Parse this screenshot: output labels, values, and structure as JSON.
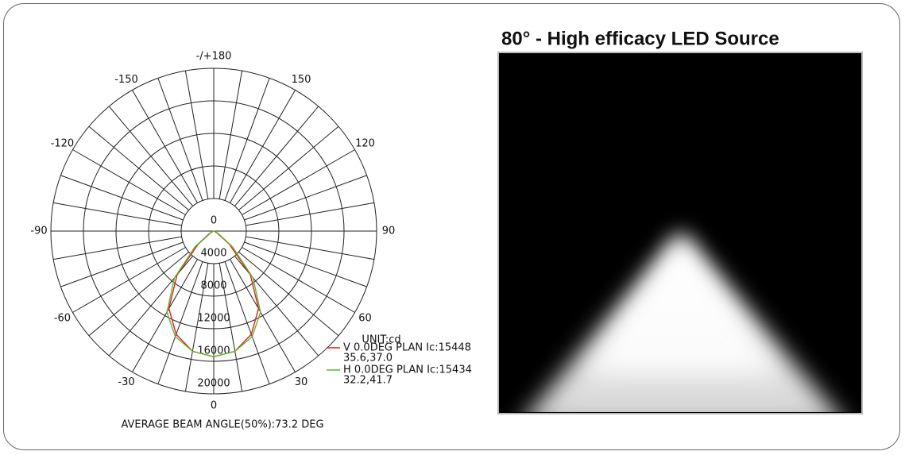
{
  "chart_data": {
    "type": "polar",
    "theta": [
      -90,
      -80,
      -70,
      -60,
      -50,
      -40,
      -30,
      -20,
      -10,
      0,
      10,
      20,
      30,
      40,
      50,
      60,
      70,
      80,
      90
    ],
    "series": [
      {
        "name": "V 0.0DEG PLAN Ic:15448",
        "color": "#e02020",
        "values": [
          0,
          0,
          100,
          500,
          2500,
          7000,
          11000,
          13500,
          15000,
          15448,
          15000,
          13500,
          11000,
          7000,
          2500,
          500,
          100,
          0,
          0
        ]
      },
      {
        "name": "H 0.0DEG PLAN Ic:15434",
        "color": "#5cb82e",
        "values": [
          0,
          0,
          150,
          700,
          3000,
          7500,
          11500,
          13800,
          15000,
          15434,
          15000,
          13800,
          11500,
          7500,
          3000,
          700,
          150,
          0,
          0
        ]
      }
    ],
    "series_notes": [
      "35.6,37.0",
      "32.2,41.7"
    ],
    "unit_label": "UNIT:cd",
    "rlim": [
      0,
      20000
    ],
    "rticks": [
      0,
      4000,
      8000,
      12000,
      16000,
      20000
    ],
    "thetaticks": [
      0,
      30,
      60,
      90,
      120,
      150,
      {
        "value": 180,
        "label": "-/+180"
      },
      -150,
      -120,
      -90,
      -60,
      -30
    ],
    "footer": "AVERAGE BEAM ANGLE(50%):73.2 DEG",
    "grid": true
  },
  "panel": {
    "title": "80° - High efficacy LED Source"
  }
}
